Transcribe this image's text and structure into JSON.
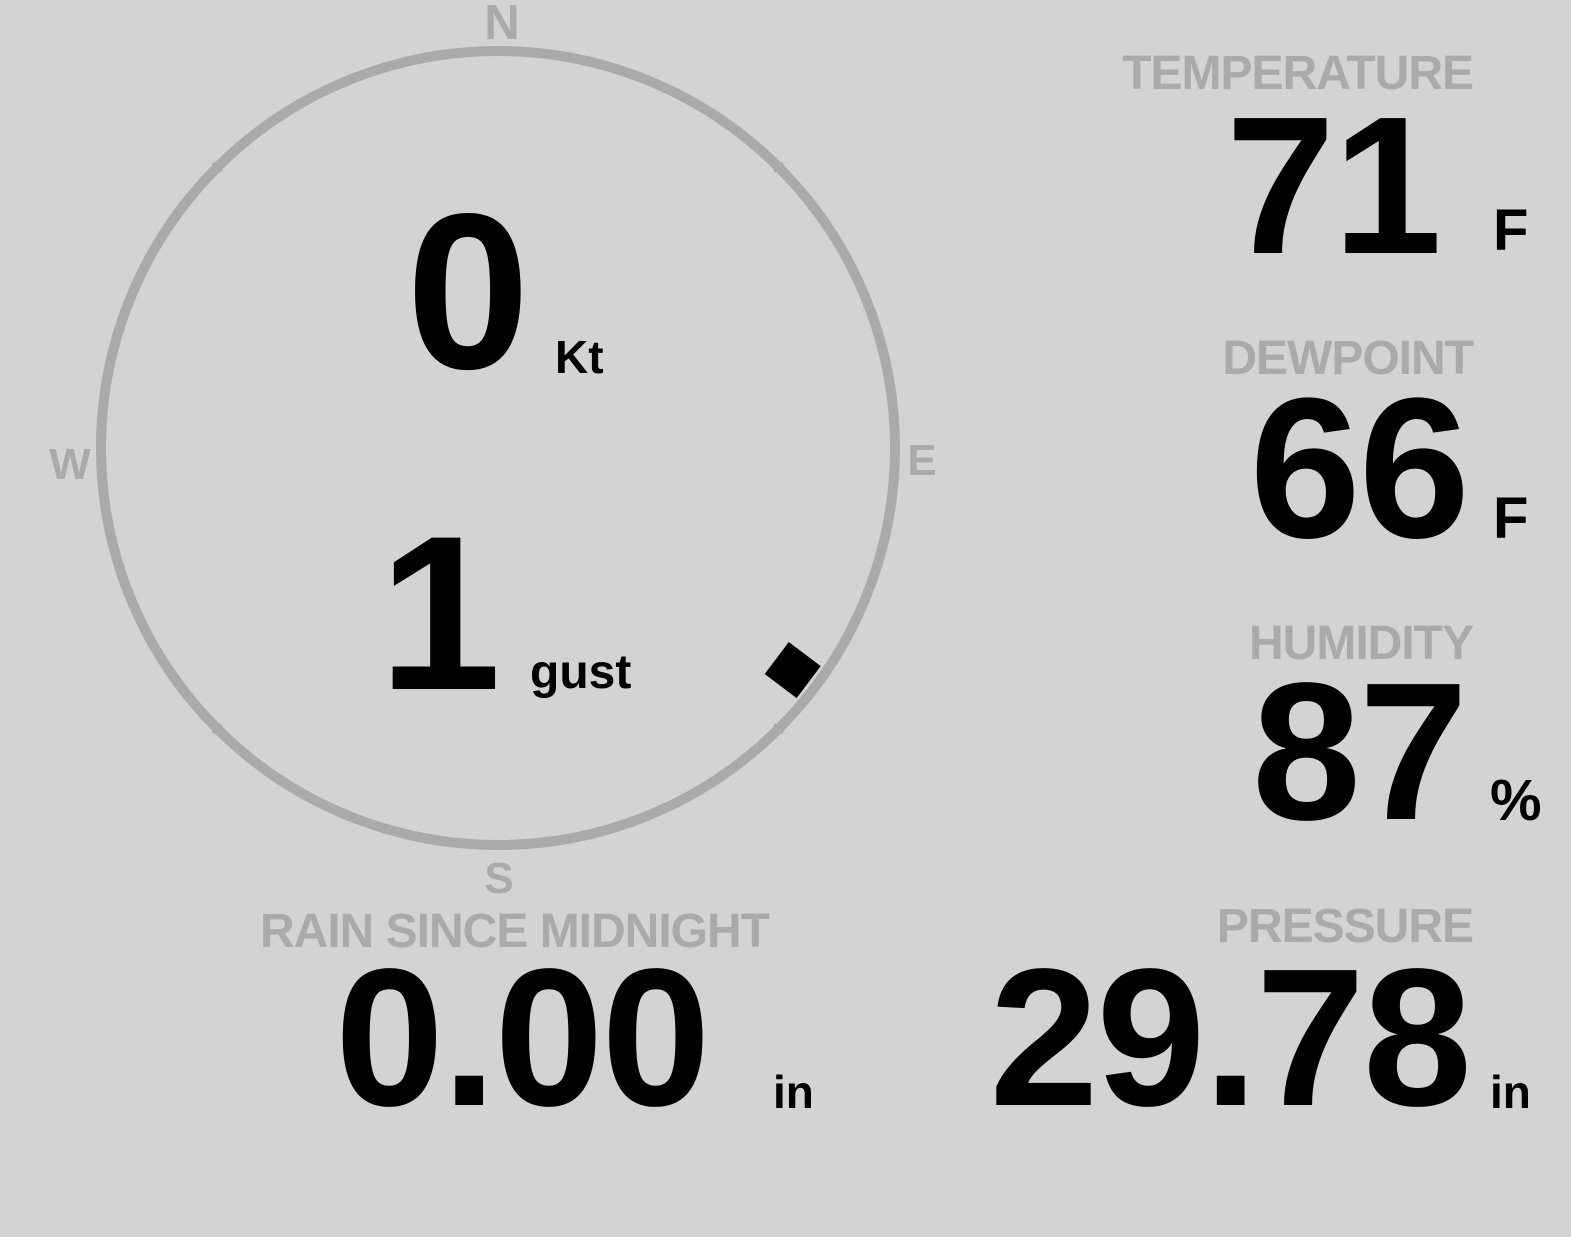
{
  "wind": {
    "compass": {
      "north": "N",
      "east": "E",
      "south": "S",
      "west": "W"
    },
    "speed": "0",
    "speed_unit": "Kt",
    "gust": "1",
    "gust_label": "gust",
    "direction_deg": 127,
    "colors": {
      "ring": "#aaaaaa",
      "marker": "#000000"
    }
  },
  "temperature": {
    "label": "TEMPERATURE",
    "value": "71",
    "unit": "F"
  },
  "dewpoint": {
    "label": "DEWPOINT",
    "value": "66",
    "unit": "F"
  },
  "humidity": {
    "label": "HUMIDITY",
    "value": "87",
    "unit": "%"
  },
  "pressure": {
    "label": "PRESSURE",
    "value": "29.78",
    "unit": "in"
  },
  "rain": {
    "label": "RAIN SINCE MIDNIGHT",
    "value": "0.00",
    "unit": "in"
  },
  "colors": {
    "background": "#d3d3d3",
    "label": "#aaaaaa",
    "value": "#000000"
  }
}
